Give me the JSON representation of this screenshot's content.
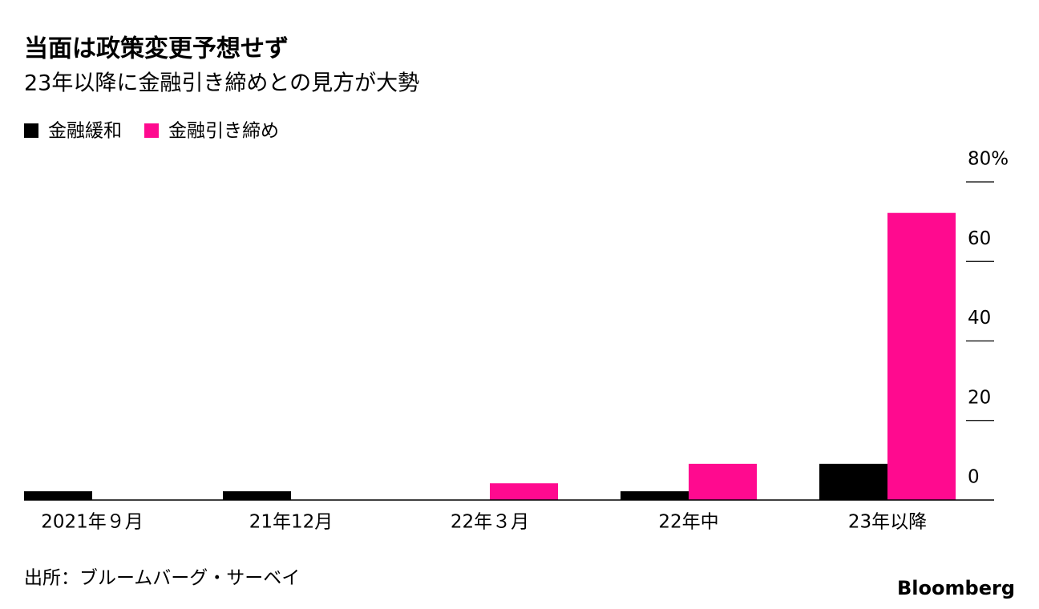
{
  "chart_data": {
    "type": "bar",
    "title": "当面は政策変更予想せず",
    "subtitle": "23年以降に金融引き締めとの見方が大勢",
    "categories": [
      "2021年９月",
      "21年12月",
      "22年３月",
      "22年中",
      "23年以降"
    ],
    "series": [
      {
        "name": "金融緩和",
        "color": "#000000",
        "values": [
          2.2,
          2.2,
          0,
          2.2,
          9.1
        ]
      },
      {
        "name": "金融引き締め",
        "color": "#ff0a8f",
        "values": [
          0,
          0,
          4.2,
          9.1,
          72.2
        ]
      }
    ],
    "ylim": [
      0,
      80
    ],
    "yticks": [
      0,
      20,
      40,
      60,
      {
        "value": 80,
        "label": "80%"
      }
    ],
    "source": "出所：ブルームバーグ・サーベイ",
    "brand": "Bloomberg"
  }
}
